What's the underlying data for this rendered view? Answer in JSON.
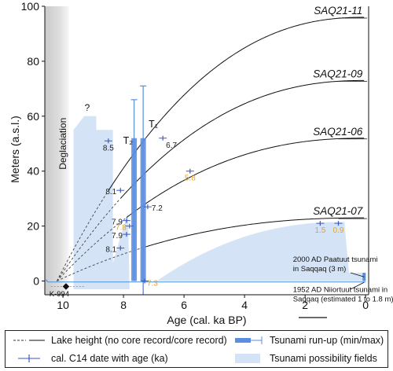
{
  "chart_data": {
    "type": "line",
    "xlabel": "Age (cal. ka BP)",
    "ylabel": "Meters (a.s.l.)",
    "xlim": [
      10.6,
      -0.1
    ],
    "ylim": [
      -5,
      100
    ],
    "x_ticks": [
      "10",
      "8",
      "6",
      "4",
      "2",
      "0"
    ],
    "y_ticks": [
      "0",
      "20",
      "40",
      "60",
      "80",
      "100"
    ],
    "x_axis_reversed": true,
    "lakes": [
      {
        "name": "SAQ21-11",
        "peak_m": 96,
        "isolation_ka": 8.5
      },
      {
        "name": "SAQ21-09",
        "peak_m": 73,
        "isolation_ka": 8.1
      },
      {
        "name": "SAQ21-06",
        "peak_m": 52,
        "isolation_ka": 7.9
      },
      {
        "name": "SAQ21-07",
        "peak_m": 23,
        "isolation_ka": 7.3
      }
    ],
    "c14_dates": [
      {
        "age": 8.5,
        "height_m": 51,
        "label": "8.5",
        "color": "#222222"
      },
      {
        "age": 6.7,
        "height_m": 52,
        "label": "6.7",
        "color": "#222222"
      },
      {
        "age": 8.1,
        "height_m": 33,
        "label": "8.1",
        "color": "#222222"
      },
      {
        "age": 7.2,
        "height_m": 27,
        "label": "7.2",
        "color": "#222222"
      },
      {
        "age": 7.9,
        "height_m": 22,
        "label": "7.9",
        "color": "#222222"
      },
      {
        "age": 7.8,
        "height_m": 20,
        "label": "7.8",
        "color": "#e8a317"
      },
      {
        "age": 7.9,
        "height_m": 17,
        "label": "7.9",
        "color": "#222222"
      },
      {
        "age": 8.1,
        "height_m": 12,
        "label": "8.1",
        "color": "#222222"
      },
      {
        "age": 5.8,
        "height_m": 40,
        "label": "5.8",
        "color": "#e8a317"
      },
      {
        "age": 7.3,
        "height_m": 0,
        "label": "7.3",
        "color": "#e8a317"
      },
      {
        "age": 1.5,
        "height_m": 21,
        "label": "1.5",
        "color": "#e8a317"
      },
      {
        "age": 0.9,
        "height_m": 21,
        "label": "0.9",
        "color": "#e8a317"
      }
    ],
    "tsunamis": [
      {
        "name": "T₂",
        "age": 7.65,
        "min_m": 0,
        "max_m": 66
      },
      {
        "name": "T₁",
        "age": 7.35,
        "min_m": 0,
        "max_m": 71
      }
    ],
    "annotations": {
      "deglaciation": "Deglaciation",
      "question": "?",
      "k994": "K-994",
      "event_2000": "2000 AD Paatuut tsunami in Saqqaq (3 m)",
      "event_1952": "1952 AD Niiortuut tsunami in Saqqaq (estimated 1 to 1.8 m)"
    },
    "legend": [
      {
        "key": "lake",
        "label": "Lake height (no core record/core record)"
      },
      {
        "key": "runup",
        "label": "Tsunami run-up (min/max)"
      },
      {
        "key": "c14",
        "label": "cal. C14 date with age (ka)"
      },
      {
        "key": "field",
        "label": "Tsunami possibility fields"
      }
    ],
    "colors": {
      "field": "#d5e3f7",
      "runup": "#5b8ee0",
      "c14": "#3a57c9",
      "label_orange": "#e8a317",
      "deglaciation_gray": "#d4d4d4",
      "sea": "#4a90d9"
    }
  }
}
